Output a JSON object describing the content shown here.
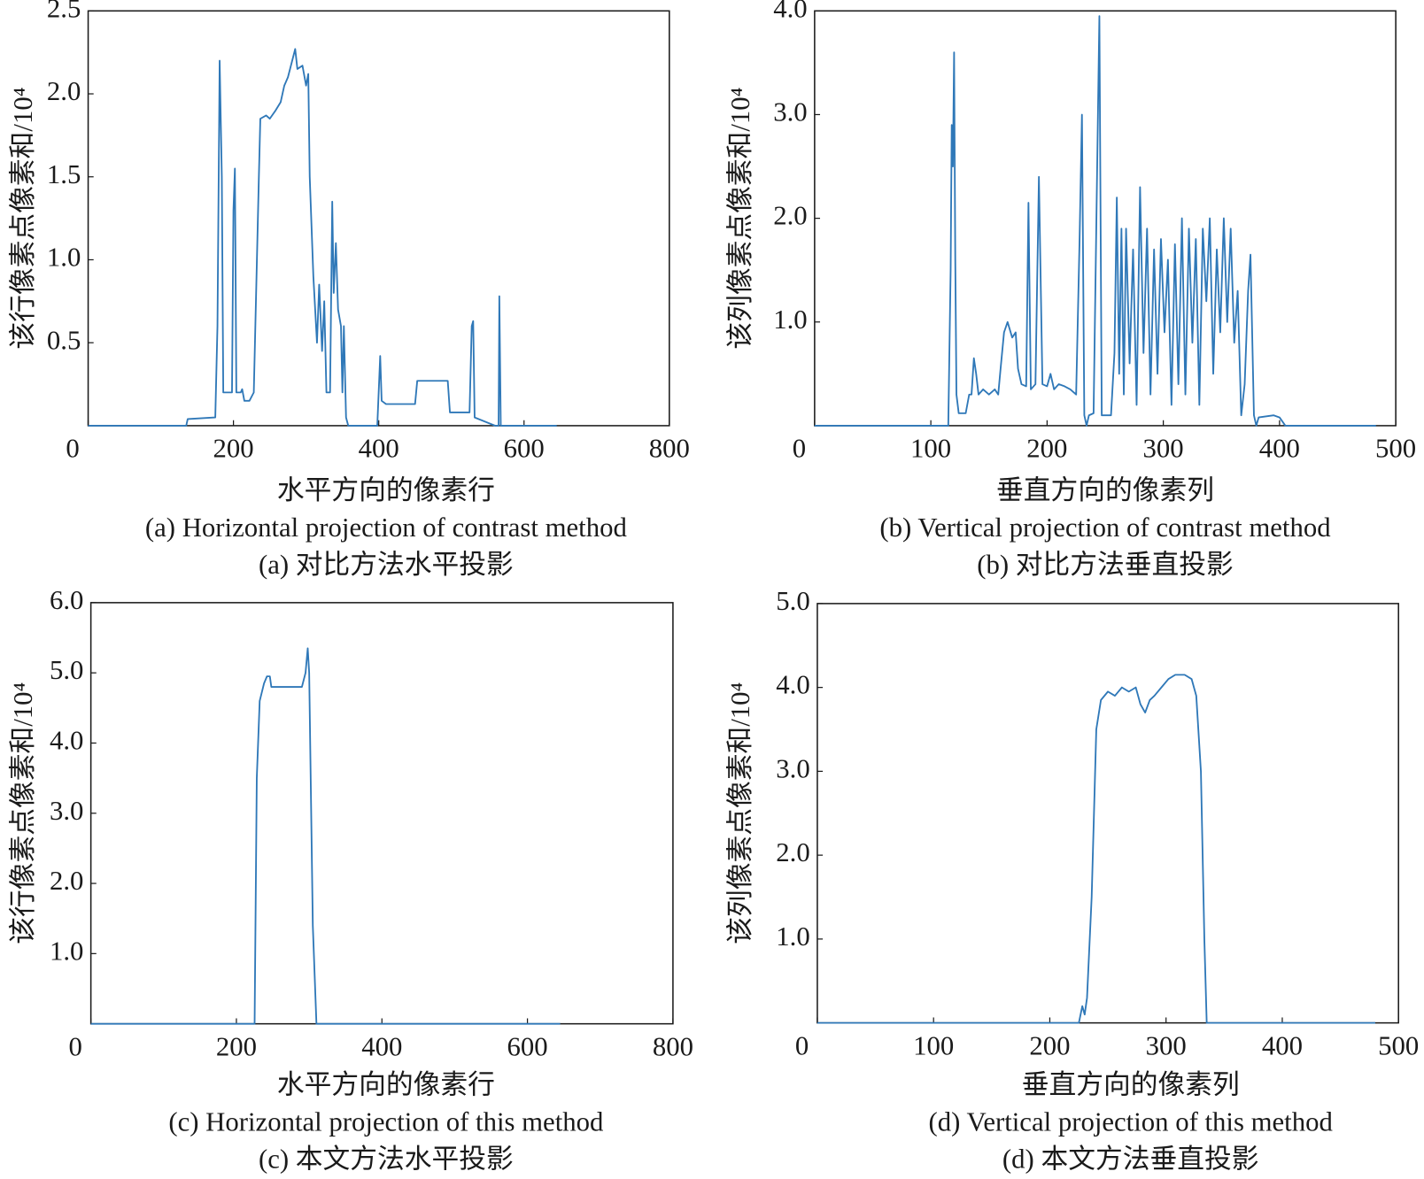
{
  "chart_data": [
    {
      "type": "line",
      "ylabel": "该行像素点像素和/10⁴",
      "xlabel": "水平方向的像素行",
      "caption_en": "(a) Horizontal projection of contrast method",
      "caption_zh": "(a) 对比方法水平投影",
      "xlim": [
        0,
        800
      ],
      "xticks": [
        0,
        200,
        400,
        600,
        800
      ],
      "ylim": [
        0,
        2.5
      ],
      "yticks": [
        0.5,
        {
          "value": 1,
          "label": "1.0"
        },
        1.5,
        {
          "value": 2,
          "label": "2.0"
        },
        2.5
      ],
      "color": "#2f78b8",
      "x": [
        0,
        135,
        137,
        175,
        178,
        181,
        184,
        186,
        198,
        200,
        202,
        204,
        210,
        212,
        215,
        222,
        228,
        235,
        237,
        245,
        250,
        258,
        265,
        270,
        275,
        285,
        288,
        295,
        300,
        303,
        305,
        310,
        315,
        318,
        322,
        325,
        328,
        333,
        336,
        338,
        341,
        344,
        348,
        350,
        352,
        355,
        358,
        398,
        402,
        404,
        410,
        450,
        453,
        495,
        498,
        525,
        528,
        530,
        532,
        560,
        565,
        566,
        568,
        645
      ],
      "values": [
        0,
        0,
        0.04,
        0.05,
        0.6,
        2.2,
        1.5,
        0.2,
        0.2,
        1.3,
        1.55,
        0.2,
        0.2,
        0.22,
        0.15,
        0.15,
        0.2,
        1.5,
        1.85,
        1.87,
        1.85,
        1.9,
        1.95,
        2.05,
        2.1,
        2.27,
        2.15,
        2.17,
        2.05,
        2.12,
        1.5,
        0.9,
        0.5,
        0.85,
        0.45,
        0.75,
        0.2,
        0.2,
        1.35,
        0.8,
        1.1,
        0.7,
        0.6,
        0.2,
        0.6,
        0.05,
        0,
        0,
        0.42,
        0.15,
        0.13,
        0.13,
        0.27,
        0.27,
        0.08,
        0.08,
        0.6,
        0.63,
        0.05,
        0,
        0,
        0.78,
        0,
        0
      ]
    },
    {
      "type": "line",
      "ylabel": "该列像素点像素和/10⁴",
      "xlabel": "垂直方向的像素列",
      "caption_en": "(b) Vertical projection of contrast method",
      "caption_zh": "(b) 对比方法垂直投影",
      "xlim": [
        0,
        500
      ],
      "xticks": [
        0,
        100,
        200,
        300,
        400,
        500
      ],
      "ylim": [
        0,
        4
      ],
      "yticks": [
        {
          "value": 1,
          "label": "1.0"
        },
        {
          "value": 2,
          "label": "2.0"
        },
        {
          "value": 3,
          "label": "3.0"
        },
        {
          "value": 4,
          "label": "4.0"
        }
      ],
      "color": "#2f78b8",
      "x": [
        0,
        115,
        117,
        118,
        119,
        120,
        121,
        122,
        124,
        130,
        133,
        135,
        137,
        139,
        141,
        145,
        150,
        155,
        158,
        160,
        163,
        166,
        170,
        173,
        175,
        178,
        182,
        184,
        186,
        190,
        193,
        196,
        200,
        203,
        206,
        210,
        215,
        220,
        225,
        228,
        230,
        232,
        234,
        236,
        240,
        245,
        247,
        255,
        258,
        260,
        262,
        264,
        266,
        268,
        271,
        274,
        277,
        280,
        283,
        286,
        289,
        292,
        295,
        298,
        301,
        304,
        307,
        310,
        313,
        316,
        319,
        322,
        325,
        328,
        331,
        334,
        337,
        340,
        343,
        346,
        349,
        352,
        355,
        358,
        361,
        364,
        367,
        370,
        373,
        375,
        378,
        380,
        382,
        395,
        400,
        405,
        483
      ],
      "values": [
        0,
        0,
        1.5,
        2.9,
        2.5,
        3.6,
        1.6,
        0.3,
        0.12,
        0.12,
        0.3,
        0.3,
        0.65,
        0.5,
        0.3,
        0.35,
        0.3,
        0.35,
        0.3,
        0.55,
        0.9,
        1.0,
        0.85,
        0.9,
        0.55,
        0.4,
        0.38,
        2.15,
        0.35,
        0.4,
        2.4,
        0.4,
        0.38,
        0.5,
        0.35,
        0.4,
        0.38,
        0.35,
        0.3,
        1.8,
        3.0,
        0.1,
        0,
        0.1,
        0.12,
        3.95,
        0.1,
        0.1,
        0.7,
        2.2,
        0.5,
        1.9,
        0.3,
        1.9,
        0.6,
        1.7,
        0.2,
        2.3,
        0.7,
        1.9,
        0.3,
        1.7,
        0.5,
        1.8,
        0.9,
        1.6,
        0.2,
        1.75,
        0.4,
        2.0,
        0.3,
        1.9,
        0.8,
        1.8,
        0.2,
        1.9,
        1.2,
        2.0,
        0.5,
        1.7,
        0.9,
        2.0,
        1.0,
        1.9,
        0.8,
        1.3,
        0.1,
        0.4,
        1.3,
        1.65,
        0.1,
        0,
        0.08,
        0.1,
        0.08,
        0,
        0
      ]
    },
    {
      "type": "line",
      "ylabel": "该行像素点像素和/10⁴",
      "xlabel": "水平方向的像素行",
      "caption_en": "(c) Horizontal projection of this method",
      "caption_zh": "(c) 本文方法水平投影",
      "xlim": [
        0,
        800
      ],
      "xticks": [
        0,
        200,
        400,
        600,
        800
      ],
      "ylim": [
        0,
        6
      ],
      "yticks": [
        {
          "value": 1,
          "label": "1.0"
        },
        {
          "value": 2,
          "label": "2.0"
        },
        {
          "value": 3,
          "label": "3.0"
        },
        {
          "value": 4,
          "label": "4.0"
        },
        {
          "value": 5,
          "label": "5.0"
        },
        {
          "value": 6,
          "label": "6.0"
        }
      ],
      "color": "#2f78b8",
      "x": [
        0,
        225,
        228,
        232,
        238,
        242,
        246,
        248,
        290,
        295,
        298,
        300,
        305,
        310,
        645
      ],
      "values": [
        0,
        0,
        3.5,
        4.6,
        4.85,
        4.95,
        4.95,
        4.8,
        4.8,
        5.0,
        5.35,
        5.0,
        1.4,
        0,
        0
      ]
    },
    {
      "type": "line",
      "ylabel": "该列像素点像素和/10⁴",
      "xlabel": "垂直方向的像素列",
      "caption_en": "(d) Vertical projection of this method",
      "caption_zh": "(d) 本文方法垂直投影",
      "xlim": [
        0,
        500
      ],
      "xticks": [
        0,
        100,
        200,
        300,
        400,
        500
      ],
      "ylim": [
        0,
        5
      ],
      "yticks": [
        {
          "value": 1,
          "label": "1.0"
        },
        {
          "value": 2,
          "label": "2.0"
        },
        {
          "value": 3,
          "label": "3.0"
        },
        {
          "value": 4,
          "label": "4.0"
        },
        {
          "value": 5,
          "label": "5.0"
        }
      ],
      "color": "#2f78b8",
      "x": [
        0,
        225,
        228,
        230,
        232,
        236,
        240,
        244,
        250,
        256,
        262,
        268,
        274,
        278,
        282,
        286,
        290,
        296,
        302,
        308,
        316,
        322,
        326,
        330,
        333,
        335,
        480
      ],
      "values": [
        0,
        0,
        0.2,
        0.1,
        0.3,
        1.5,
        3.5,
        3.85,
        3.95,
        3.9,
        4.0,
        3.95,
        4.0,
        3.8,
        3.7,
        3.85,
        3.9,
        4.0,
        4.1,
        4.15,
        4.15,
        4.1,
        3.9,
        3.0,
        1.0,
        0,
        0
      ]
    }
  ]
}
